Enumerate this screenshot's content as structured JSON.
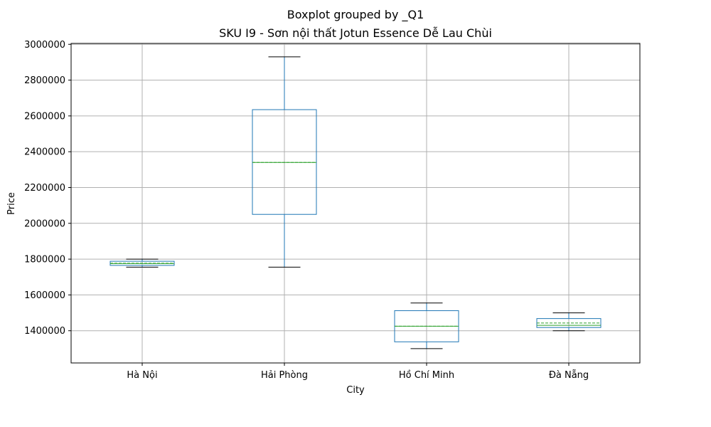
{
  "chart_data": {
    "type": "boxplot",
    "suptitle": "Boxplot grouped by _Q1",
    "title": "SKU I9 - Sơn nội thất Jotun Essence Dễ Lau Chùi",
    "xlabel": "City",
    "ylabel": "Price",
    "categories": [
      "Hà Nội",
      "Hải Phòng",
      "Hồ Chí Minh",
      "Đà Nẵng"
    ],
    "boxes": [
      {
        "category": "Hà Nội",
        "whislo": 1755000,
        "q1": 1765000,
        "median": 1775000,
        "mean": 1777000,
        "q3": 1788000,
        "whishi": 1800000
      },
      {
        "category": "Hải Phòng",
        "whislo": 1755000,
        "q1": 2050000,
        "median": 2340000,
        "mean": 2340000,
        "q3": 2635000,
        "whishi": 2930000
      },
      {
        "category": "Hồ Chí Minh",
        "whislo": 1300000,
        "q1": 1338000,
        "median": 1425000,
        "mean": 1425000,
        "q3": 1512000,
        "whishi": 1555000
      },
      {
        "category": "Đà Nẵng",
        "whislo": 1400000,
        "q1": 1418000,
        "median": 1430000,
        "mean": 1443000,
        "q3": 1468000,
        "whishi": 1500000
      }
    ],
    "ylim": [
      1220000,
      3005000
    ],
    "yticks": [
      1400000,
      1600000,
      1800000,
      2000000,
      2200000,
      2400000,
      2600000,
      2800000,
      3000000
    ],
    "grid": true,
    "colors": {
      "box": "#1f77b4",
      "median": "#2ca02c",
      "mean": "#2ca02c",
      "whisker": "#1f77b4",
      "cap": "#000000",
      "grid": "#b0b0b0"
    }
  }
}
